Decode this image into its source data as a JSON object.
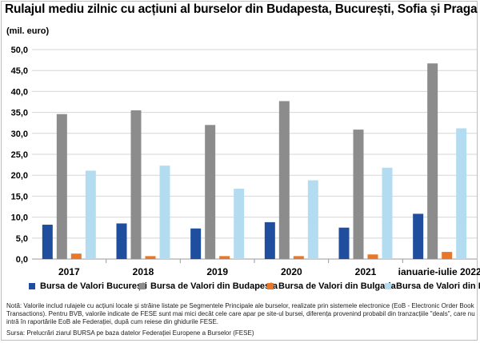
{
  "title": "Rulajul mediu zilnic cu acțiuni al burselor din Budapesta, București,  Sofia și Praga",
  "unit": "(mil. euro)",
  "chart_data": {
    "type": "bar",
    "categories": [
      "2017",
      "2018",
      "2019",
      "2020",
      "2021",
      "ianuarie-iulie 2022"
    ],
    "ylim": [
      0,
      50
    ],
    "yticks": [
      "0,0",
      "5,0",
      "10,0",
      "15,0",
      "20,0",
      "25,0",
      "30,0",
      "35,0",
      "40,0",
      "45,0",
      "50,0"
    ],
    "grid": true,
    "legend_position": "bottom",
    "series": [
      {
        "name": "Bursa de Valori București",
        "color": "#1f4e9e",
        "values": [
          8.2,
          8.5,
          7.3,
          8.8,
          7.5,
          10.8
        ]
      },
      {
        "name": "Bursa de Valori din Budapesta",
        "color": "#8c8c8c",
        "values": [
          34.6,
          35.5,
          32.0,
          37.7,
          30.9,
          46.7
        ]
      },
      {
        "name": "Bursa de Valori din Bulgaria",
        "color": "#e8772a",
        "values": [
          1.3,
          0.7,
          0.7,
          0.7,
          1.1,
          1.7
        ]
      },
      {
        "name": "Bursa de Valori din Praga",
        "color": "#b4dcf0",
        "values": [
          21.1,
          22.3,
          16.8,
          18.8,
          21.8,
          31.2
        ]
      }
    ]
  },
  "note": "Notă: Valorile includ rulajele cu acțiuni locale și străine listate pe Segmentele Principale ale burselor, realizate prin sistemele electronice (EoB - Electronic Order Book Transactions). Pentru BVB, valorile indicate de FESE sunt mai mici decât cele care apar pe site-ul bursei, diferența provenind probabil din tranzacțiile \"deals\", care nu intră în raportările EoB ale Federației, după cum reiese din ghidurile FESE.",
  "source": "Sursa: Prelucrări ziarul BURSA pe baza datelor Federației Europene a Burselor (FESE)"
}
